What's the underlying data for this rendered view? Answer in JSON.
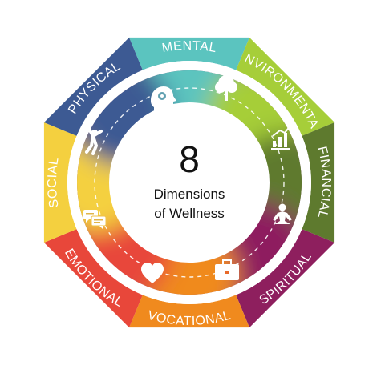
{
  "diagram": {
    "center": {
      "number": "8",
      "line1": "Dimensions",
      "line2": "of Wellness"
    },
    "segments": [
      {
        "label": "MENTAL",
        "color": "#5BC4BF",
        "icon": "brain-gear-icon"
      },
      {
        "label": "ENVIRONMENTAL",
        "color": "#A6CE39",
        "icon": "tree-icon"
      },
      {
        "label": "FINANCIAL",
        "color": "#5E7A2E",
        "icon": "growth-chart-icon"
      },
      {
        "label": "SPIRITUAL",
        "color": "#8E1F5E",
        "icon": "meditation-icon"
      },
      {
        "label": "VOCATIONAL",
        "color": "#F08A1E",
        "icon": "briefcase-icon"
      },
      {
        "label": "EMOTIONAL",
        "color": "#E8473A",
        "icon": "heart-icon"
      },
      {
        "label": "SOCIAL",
        "color": "#F4D03F",
        "icon": "chat-bubbles-icon"
      },
      {
        "label": "PHYSICAL",
        "color": "#3D5A93",
        "icon": "jumping-person-icon"
      }
    ]
  }
}
